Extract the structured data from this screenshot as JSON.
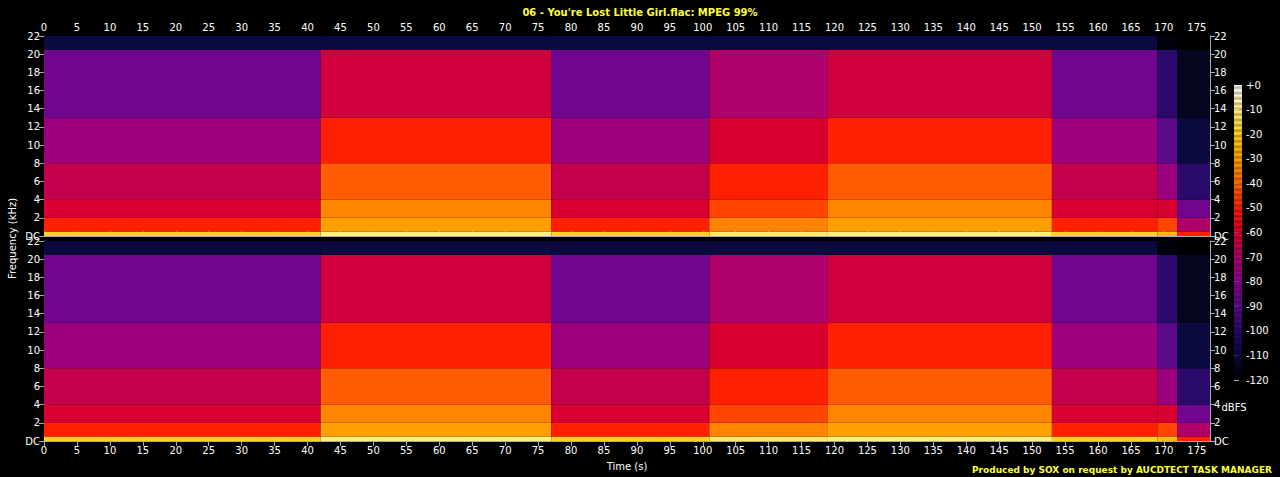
{
  "chart_data": {
    "type": "heatmap",
    "title": "06 - You're Lost Little Girl.flac: MPEG 99%",
    "xlabel": "Time (s)",
    "ylabel": "Frequency (kHz)",
    "caption": "Produced by SOX on request by AUCDTECT TASK MANAGER",
    "xlim": [
      0,
      177
    ],
    "xticks": [
      0,
      5,
      10,
      15,
      20,
      25,
      30,
      35,
      40,
      45,
      50,
      55,
      60,
      65,
      70,
      75,
      80,
      85,
      90,
      95,
      100,
      105,
      110,
      115,
      120,
      125,
      130,
      135,
      140,
      145,
      150,
      155,
      160,
      165,
      170,
      175
    ],
    "ylim": [
      0,
      22
    ],
    "yticks": [
      {
        "value": 0,
        "label": "DC"
      },
      2,
      4,
      6,
      8,
      10,
      12,
      14,
      16,
      18,
      20,
      22
    ],
    "time_edges": [
      0,
      42,
      77,
      101,
      119,
      153,
      169,
      172,
      177
    ],
    "freq_edges": [
      0,
      0.5,
      2,
      4,
      8,
      13,
      20.5,
      22
    ],
    "channels": [
      {
        "cells": [
          [
            -20,
            -10,
            -20,
            -12,
            -10,
            -20,
            -25,
            -50
          ],
          [
            -50,
            -30,
            -50,
            -35,
            -30,
            -50,
            -45,
            -70
          ],
          [
            -60,
            -35,
            -60,
            -45,
            -35,
            -60,
            -60,
            -85
          ],
          [
            -65,
            -42,
            -65,
            -50,
            -42,
            -65,
            -75,
            -100
          ],
          [
            -75,
            -50,
            -75,
            -60,
            -50,
            -75,
            -90,
            -110
          ],
          [
            -85,
            -62,
            -85,
            -70,
            -62,
            -85,
            -100,
            -115
          ],
          [
            -110,
            -110,
            -110,
            -110,
            -110,
            -110,
            -118,
            -120
          ]
        ]
      },
      {
        "cells": [
          [
            -20,
            -10,
            -20,
            -12,
            -10,
            -20,
            -25,
            -50
          ],
          [
            -50,
            -30,
            -50,
            -35,
            -30,
            -50,
            -45,
            -70
          ],
          [
            -60,
            -35,
            -60,
            -45,
            -35,
            -60,
            -60,
            -85
          ],
          [
            -65,
            -42,
            -65,
            -50,
            -42,
            -65,
            -75,
            -100
          ],
          [
            -75,
            -50,
            -75,
            -60,
            -50,
            -75,
            -90,
            -110
          ],
          [
            -85,
            -62,
            -85,
            -70,
            -62,
            -85,
            -100,
            -115
          ],
          [
            -110,
            -110,
            -110,
            -110,
            -110,
            -110,
            -118,
            -120
          ]
        ]
      }
    ],
    "colorbar": {
      "label": "dBFS",
      "range": [
        -120,
        0
      ],
      "ticks": [
        {
          "value": 0,
          "label": "+0"
        },
        -10,
        -20,
        -30,
        -40,
        -50,
        -60,
        -70,
        -80,
        -90,
        -100,
        -110,
        -120
      ]
    }
  }
}
